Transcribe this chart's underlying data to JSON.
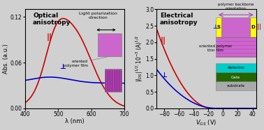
{
  "left_title": "Optical\nanisotropy",
  "right_title": "Electrical\nanisotropy",
  "left_xlabel": "λ (nm)",
  "left_ylabel": "Abs. (a.u.)",
  "right_xlabel": "VₚS (V)",
  "right_ylabel": "|IₚS|¹ⁿ²·10⁻³ (A)¹ⁿ²",
  "left_xlim": [
    400,
    700
  ],
  "left_ylim": [
    0,
    0.13
  ],
  "left_yticks": [
    0,
    0.06,
    0.12
  ],
  "right_xlim": [
    -90,
    45
  ],
  "right_ylim": [
    0,
    3.0
  ],
  "right_yticks": [
    0,
    0.5,
    1.0,
    1.5,
    2.0,
    2.5,
    3.0
  ],
  "red_color": "#cc0000",
  "blue_color": "#0000cc",
  "purple_color": "#cc66cc",
  "purple_dark_color": "#aa44aa",
  "bg_color": "#d0d0d0"
}
